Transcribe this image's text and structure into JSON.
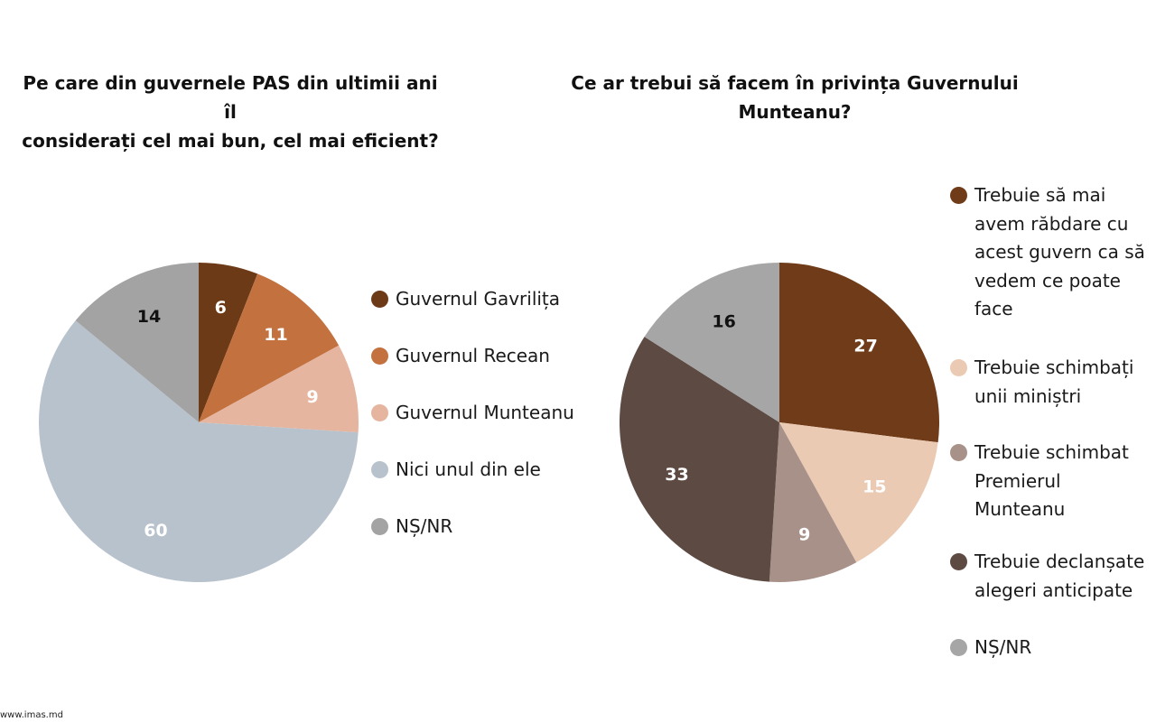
{
  "chart_data": [
    {
      "type": "pie",
      "title": "Pe care din guvernele PAS din ultimii ani îl\nconsiderați cel mai bun, cel mai eficient?",
      "legend_position": "right",
      "slices": [
        {
          "label": "Guvernul Gavrilița",
          "value": 6,
          "color": "#6d3a17",
          "label_color": "#ffffff"
        },
        {
          "label": "Guvernul Recean",
          "value": 11,
          "color": "#c2713f",
          "label_color": "#ffffff"
        },
        {
          "label": "Guvernul Munteanu",
          "value": 9,
          "color": "#e5b5a0",
          "label_color": "#ffffff"
        },
        {
          "label": "Nici unul din ele",
          "value": 60,
          "color": "#b8c2cc",
          "label_color": "#ffffff"
        },
        {
          "label": "NȘ/NR",
          "value": 14,
          "color": "#a3a3a3",
          "label_color": "#111111"
        }
      ]
    },
    {
      "type": "pie",
      "title": "Ce ar trebui să facem în privința Guvernului\nMunteanu?",
      "legend_position": "right",
      "slices": [
        {
          "label": "Trebuie să mai\navem răbdare cu\nacest guvern ca să\nvedem ce poate\nface",
          "value": 27,
          "color": "#6f3b18",
          "label_color": "#ffffff"
        },
        {
          "label": "Trebuie schimbați\nunii miniștri",
          "value": 15,
          "color": "#ebcab4",
          "label_color": "#ffffff"
        },
        {
          "label": "Trebuie schimbat\nPremierul\nMunteanu",
          "value": 9,
          "color": "#a89189",
          "label_color": "#ffffff"
        },
        {
          "label": "Trebuie declanșate\nalegeri anticipate",
          "value": 33,
          "color": "#5c4a43",
          "label_color": "#ffffff"
        },
        {
          "label": "NȘ/NR",
          "value": 16,
          "color": "#a6a6a6",
          "label_color": "#111111"
        }
      ]
    }
  ],
  "footer": {
    "source": "www.imas.md"
  }
}
